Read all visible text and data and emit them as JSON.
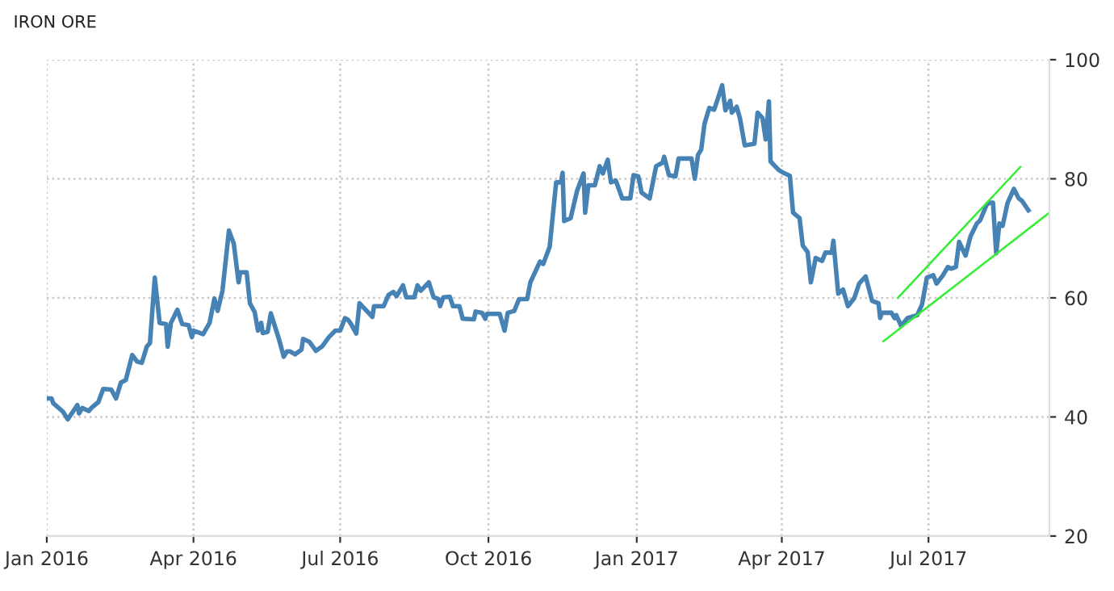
{
  "chart_data": {
    "type": "line",
    "title": "IRON ORE",
    "xlim": [
      "2016-01-01",
      "2017-09-14"
    ],
    "ylim": [
      20,
      100
    ],
    "yticks": [
      20,
      40,
      60,
      80,
      100
    ],
    "xticks": [
      {
        "value": "2016-01-01",
        "label": "Jan 2016"
      },
      {
        "value": "2016-04-01",
        "label": "Apr 2016"
      },
      {
        "value": "2016-07-01",
        "label": "Jul 2016"
      },
      {
        "value": "2016-10-01",
        "label": "Oct 2016"
      },
      {
        "value": "2017-01-01",
        "label": "Jan 2017"
      },
      {
        "value": "2017-04-01",
        "label": "Apr 2017"
      },
      {
        "value": "2017-07-01",
        "label": "Jul 2017"
      }
    ],
    "grid": true,
    "marker": "none",
    "line_style": "solid",
    "series": [
      {
        "color": "#4682b4",
        "x": [
          "2016-01-01",
          "2016-01-04",
          "2016-01-05",
          "2016-01-11",
          "2016-01-14",
          "2016-01-20",
          "2016-01-21",
          "2016-01-23",
          "2016-01-27",
          "2016-01-29",
          "2016-02-02",
          "2016-02-05",
          "2016-02-10",
          "2016-02-13",
          "2016-02-16",
          "2016-02-19",
          "2016-02-23",
          "2016-02-26",
          "2016-02-29",
          "2016-03-03",
          "2016-03-05",
          "2016-03-08",
          "2016-03-11",
          "2016-03-15",
          "2016-03-16",
          "2016-03-18",
          "2016-03-22",
          "2016-03-25",
          "2016-03-29",
          "2016-03-31",
          "2016-04-01",
          "2016-04-07",
          "2016-04-11",
          "2016-04-14",
          "2016-04-16",
          "2016-04-19",
          "2016-04-23",
          "2016-04-26",
          "2016-04-29",
          "2016-04-30",
          "2016-05-04",
          "2016-05-06",
          "2016-05-09",
          "2016-05-11",
          "2016-05-13",
          "2016-05-14",
          "2016-05-17",
          "2016-05-19",
          "2016-05-24",
          "2016-05-27",
          "2016-05-29",
          "2016-05-31",
          "2016-06-03",
          "2016-06-07",
          "2016-06-08",
          "2016-06-12",
          "2016-06-16",
          "2016-06-20",
          "2016-06-24",
          "2016-06-28",
          "2016-07-01",
          "2016-07-04",
          "2016-07-06",
          "2016-07-08",
          "2016-07-11",
          "2016-07-13",
          "2016-07-21",
          "2016-07-22",
          "2016-07-28",
          "2016-07-31",
          "2016-08-03",
          "2016-08-05",
          "2016-08-09",
          "2016-08-11",
          "2016-08-16",
          "2016-08-18",
          "2016-08-20",
          "2016-08-25",
          "2016-08-28",
          "2016-08-31",
          "2016-09-01",
          "2016-09-03",
          "2016-09-07",
          "2016-09-09",
          "2016-09-13",
          "2016-09-15",
          "2016-09-22",
          "2016-09-23",
          "2016-09-27",
          "2016-09-29",
          "2016-09-30",
          "2016-10-08",
          "2016-10-11",
          "2016-10-13",
          "2016-10-17",
          "2016-10-20",
          "2016-10-25",
          "2016-10-27",
          "2016-11-02",
          "2016-11-04",
          "2016-11-08",
          "2016-11-12",
          "2016-11-15",
          "2016-11-16",
          "2016-11-17",
          "2016-11-21",
          "2016-11-25",
          "2016-11-29",
          "2016-11-30",
          "2016-12-02",
          "2016-12-06",
          "2016-12-09",
          "2016-12-11",
          "2016-12-14",
          "2016-12-16",
          "2016-12-19",
          "2016-12-23",
          "2016-12-28",
          "2016-12-30",
          "2017-01-02",
          "2017-01-04",
          "2017-01-09",
          "2017-01-13",
          "2017-01-17",
          "2017-01-18",
          "2017-01-21",
          "2017-01-25",
          "2017-01-27",
          "2017-02-04",
          "2017-02-06",
          "2017-02-08",
          "2017-02-10",
          "2017-02-12",
          "2017-02-15",
          "2017-02-18",
          "2017-02-20",
          "2017-02-23",
          "2017-02-25",
          "2017-02-28",
          "2017-03-01",
          "2017-03-04",
          "2017-03-06",
          "2017-03-09",
          "2017-03-15",
          "2017-03-17",
          "2017-03-20",
          "2017-03-22",
          "2017-03-24",
          "2017-03-25",
          "2017-03-30",
          "2017-04-02",
          "2017-04-06",
          "2017-04-08",
          "2017-04-12",
          "2017-04-14",
          "2017-04-17",
          "2017-04-19",
          "2017-04-22",
          "2017-04-26",
          "2017-04-28",
          "2017-05-02",
          "2017-05-03",
          "2017-05-06",
          "2017-05-09",
          "2017-05-12",
          "2017-05-16",
          "2017-05-19",
          "2017-05-23",
          "2017-05-27",
          "2017-05-31",
          "2017-06-01",
          "2017-06-02",
          "2017-06-08",
          "2017-06-10",
          "2017-06-11",
          "2017-06-14",
          "2017-06-18",
          "2017-06-24",
          "2017-06-27",
          "2017-06-30",
          "2017-07-04",
          "2017-07-06",
          "2017-07-10",
          "2017-07-13",
          "2017-07-15",
          "2017-07-18",
          "2017-07-20",
          "2017-07-24",
          "2017-07-27",
          "2017-07-31",
          "2017-08-02",
          "2017-08-06",
          "2017-08-08",
          "2017-08-10",
          "2017-08-12",
          "2017-08-14",
          "2017-08-16",
          "2017-08-19",
          "2017-08-23",
          "2017-08-26",
          "2017-08-28",
          "2017-09-01"
        ],
        "values": [
          43.1,
          43.1,
          42.3,
          40.9,
          39.6,
          42.0,
          40.6,
          41.5,
          41.0,
          41.6,
          42.5,
          44.7,
          44.6,
          43.1,
          45.8,
          46.2,
          50.4,
          49.3,
          49.1,
          51.8,
          52.4,
          63.4,
          55.8,
          55.6,
          51.8,
          55.8,
          58.0,
          55.6,
          55.4,
          53.4,
          54.5,
          53.9,
          55.8,
          59.9,
          57.8,
          61.2,
          71.3,
          69.1,
          62.6,
          64.3,
          64.3,
          59.1,
          57.6,
          54.5,
          55.8,
          54.1,
          54.3,
          57.4,
          53.1,
          50.1,
          51.0,
          51.0,
          50.5,
          51.3,
          53.1,
          52.6,
          51.1,
          51.9,
          53.4,
          54.5,
          54.5,
          56.6,
          56.3,
          55.5,
          54.0,
          59.1,
          56.8,
          58.6,
          58.6,
          60.5,
          61.0,
          60.3,
          62.1,
          60.1,
          60.1,
          62.1,
          61.2,
          62.6,
          60.1,
          59.8,
          58.6,
          60.1,
          60.2,
          58.6,
          58.6,
          56.5,
          56.4,
          57.7,
          57.5,
          56.5,
          57.3,
          57.3,
          54.5,
          57.5,
          57.8,
          59.8,
          59.8,
          62.6,
          66.1,
          65.7,
          68.6,
          79.4,
          79.4,
          81.0,
          72.9,
          73.4,
          78.0,
          80.9,
          74.3,
          78.9,
          78.9,
          82.1,
          80.9,
          83.2,
          79.4,
          79.7,
          76.7,
          76.7,
          80.6,
          80.4,
          77.7,
          76.7,
          82.1,
          82.7,
          83.7,
          80.6,
          80.4,
          83.4,
          83.4,
          80.0,
          84.0,
          84.9,
          89.2,
          91.9,
          91.6,
          93.2,
          95.7,
          91.5,
          93.1,
          91.1,
          92.1,
          90.2,
          85.6,
          85.9,
          91.1,
          90.2,
          86.6,
          93.0,
          82.9,
          81.5,
          81.0,
          80.5,
          74.3,
          73.4,
          68.8,
          67.7,
          62.6,
          66.7,
          66.2,
          67.6,
          67.6,
          69.6,
          60.7,
          61.4,
          58.6,
          60.0,
          62.4,
          63.6,
          59.5,
          59.1,
          56.6,
          57.5,
          57.5,
          56.6,
          57.1,
          55.3,
          56.6,
          57.1,
          58.9,
          63.4,
          63.8,
          62.4,
          63.8,
          65.2,
          64.9,
          65.2,
          69.4,
          67.1,
          70.3,
          72.5,
          73.0,
          75.6,
          76.0,
          76.0,
          67.5,
          72.5,
          72.1,
          75.9,
          78.3,
          76.7,
          76.3,
          74.7
        ]
      },
      {
        "type": "line",
        "color": "#33ee33",
        "x": [
          "2017-06-12",
          "2017-08-27"
        ],
        "values": [
          60,
          82
        ]
      },
      {
        "type": "line",
        "color": "#33ee33",
        "x": [
          "2017-06-03",
          "2017-09-14"
        ],
        "values": [
          52.7,
          74.3
        ]
      }
    ]
  }
}
